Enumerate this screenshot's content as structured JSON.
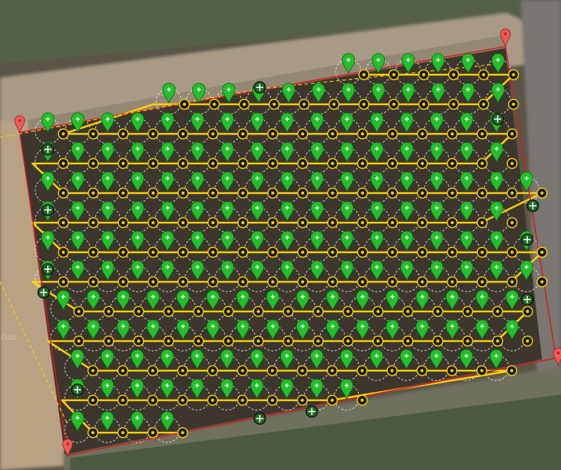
{
  "map": {
    "type": "satellite-mission-plan",
    "imagery_watermark": "Goo",
    "colors": {
      "survey_boundary": "#d7191c",
      "flight_path": "#ffd500",
      "waypoint_marker": "#22c02a",
      "boundary_vertex_marker": "#f05a55",
      "capture_radius": "#ffffff",
      "ground_field": "#3d362d"
    },
    "boundary_vertices": 4,
    "icons": [
      "waypoint-pin-icon",
      "camera-trigger-icon",
      "boundary-vertex-pin-icon",
      "crosshair-icon"
    ]
  }
}
